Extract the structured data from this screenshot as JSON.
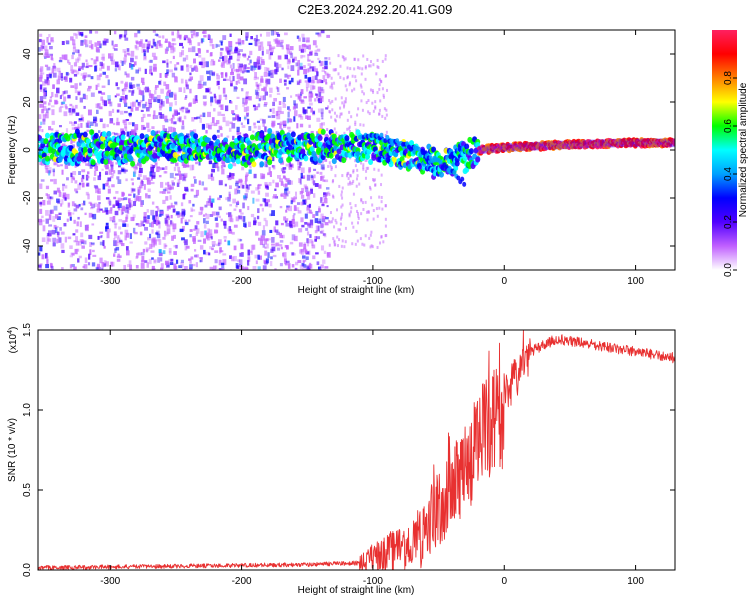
{
  "title": "C2E3.2024.292.20.41.G09",
  "chart_data": [
    {
      "type": "heatmap",
      "xlabel": "Height of straight line (km)",
      "ylabel": "Frequency (Hz)",
      "xlim": [
        -355,
        130
      ],
      "ylim": [
        -50,
        50
      ],
      "xticks": [
        -300,
        -200,
        -100,
        0,
        100
      ],
      "yticks": [
        -40,
        -20,
        0,
        20,
        40
      ],
      "colorbar": {
        "label": "Normalized spectral amplitude",
        "range": [
          0,
          1
        ],
        "ticks": [
          0.0,
          0.2,
          0.4,
          0.6,
          0.8
        ],
        "colors": [
          "#ffffff",
          "#c060ff",
          "#5000ff",
          "#0000ff",
          "#00a0ff",
          "#00ffff",
          "#00ff00",
          "#ffff00",
          "#ff8000",
          "#ff0000",
          "#ff2060"
        ]
      },
      "ridge": [
        {
          "x": -300,
          "y": 1
        },
        {
          "x": -250,
          "y": 1
        },
        {
          "x": -200,
          "y": 0
        },
        {
          "x": -160,
          "y": 2
        },
        {
          "x": -130,
          "y": 1
        },
        {
          "x": -110,
          "y": 2
        },
        {
          "x": -80,
          "y": -2
        },
        {
          "x": -50,
          "y": -6
        },
        {
          "x": -35,
          "y": -3
        },
        {
          "x": -20,
          "y": 0
        },
        {
          "x": 0,
          "y": 1
        },
        {
          "x": 40,
          "y": 2
        },
        {
          "x": 90,
          "y": 3
        },
        {
          "x": 130,
          "y": 3
        }
      ]
    },
    {
      "type": "line",
      "xlabel": "Height of straight line (km)",
      "ylabel": "SNR (10 * v/v)",
      "y_multiplier": "(x10",
      "y_multiplier_exp": "4",
      "y_multiplier_close": ")",
      "xlim": [
        -355,
        130
      ],
      "ylim": [
        0,
        1.5
      ],
      "xticks": [
        -300,
        -200,
        -100,
        0,
        100
      ],
      "yticks": [
        0.0,
        0.5,
        1.0,
        1.5
      ],
      "color": "#e83030",
      "envelope": [
        {
          "x": -355,
          "y": 0.02
        },
        {
          "x": -250,
          "y": 0.03
        },
        {
          "x": -150,
          "y": 0.04
        },
        {
          "x": -110,
          "y": 0.05
        },
        {
          "x": -100,
          "y": 0.12
        },
        {
          "x": -80,
          "y": 0.2
        },
        {
          "x": -60,
          "y": 0.32
        },
        {
          "x": -45,
          "y": 0.55
        },
        {
          "x": -30,
          "y": 0.75
        },
        {
          "x": -20,
          "y": 0.95
        },
        {
          "x": -10,
          "y": 1.05
        },
        {
          "x": 0,
          "y": 1.15
        },
        {
          "x": 10,
          "y": 1.28
        },
        {
          "x": 20,
          "y": 1.38
        },
        {
          "x": 40,
          "y": 1.46
        },
        {
          "x": 70,
          "y": 1.42
        },
        {
          "x": 100,
          "y": 1.38
        },
        {
          "x": 130,
          "y": 1.34
        }
      ]
    }
  ]
}
